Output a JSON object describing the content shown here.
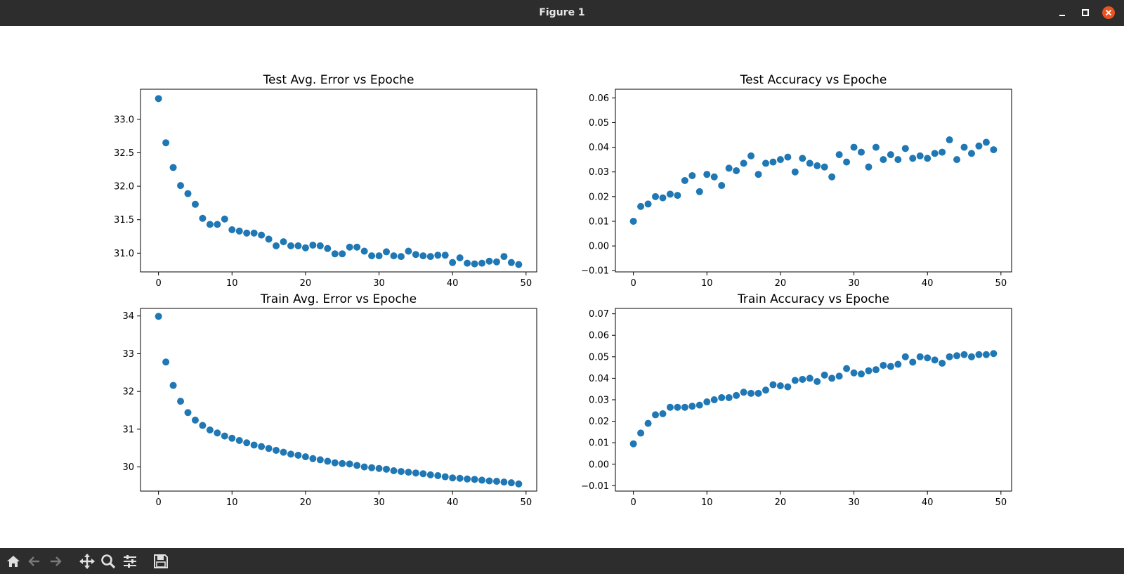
{
  "window": {
    "title": "Figure 1"
  },
  "toolbar": {
    "icons": [
      "home-icon",
      "back-arrow-icon",
      "forward-arrow-icon",
      "pan-icon",
      "zoom-icon",
      "configure-subplots-icon",
      "save-icon"
    ]
  },
  "colors": {
    "marker": "#1f77b4",
    "titlebar": "#2d2d2d",
    "close": "#e95420"
  },
  "chart_data": [
    {
      "type": "scatter",
      "title": "Test Avg. Error vs Epoche",
      "xlim": [
        -2.45,
        51.45
      ],
      "ylim": [
        30.72,
        33.45
      ],
      "xticks": [
        0,
        10,
        20,
        30,
        40,
        50
      ],
      "yticks": [
        31.0,
        31.5,
        32.0,
        32.5,
        33.0
      ],
      "ytick_labels": [
        "31.0",
        "31.5",
        "32.0",
        "32.5",
        "33.0"
      ],
      "x": [
        0,
        1,
        2,
        3,
        4,
        5,
        6,
        7,
        8,
        9,
        10,
        11,
        12,
        13,
        14,
        15,
        16,
        17,
        18,
        19,
        20,
        21,
        22,
        23,
        24,
        25,
        26,
        27,
        28,
        29,
        30,
        31,
        32,
        33,
        34,
        35,
        36,
        37,
        38,
        39,
        40,
        41,
        42,
        43,
        44,
        45,
        46,
        47,
        48,
        49
      ],
      "y": [
        33.31,
        32.65,
        32.28,
        32.01,
        31.89,
        31.73,
        31.52,
        31.43,
        31.43,
        31.51,
        31.35,
        31.33,
        31.3,
        31.3,
        31.27,
        31.21,
        31.11,
        31.17,
        31.11,
        31.11,
        31.08,
        31.12,
        31.11,
        31.07,
        30.99,
        30.99,
        31.09,
        31.09,
        31.03,
        30.96,
        30.96,
        31.02,
        30.96,
        30.95,
        31.03,
        30.98,
        30.96,
        30.95,
        30.97,
        30.97,
        30.86,
        30.93,
        30.85,
        30.84,
        30.85,
        30.88,
        30.87,
        30.95,
        30.86,
        30.83
      ]
    },
    {
      "type": "scatter",
      "title": "Test Accuracy vs Epoche",
      "xlim": [
        -2.45,
        51.45
      ],
      "ylim": [
        -0.0105,
        0.0635
      ],
      "xticks": [
        0,
        10,
        20,
        30,
        40,
        50
      ],
      "yticks": [
        -0.01,
        0.0,
        0.01,
        0.02,
        0.03,
        0.04,
        0.05,
        0.06
      ],
      "ytick_labels": [
        "−0.01",
        "0.00",
        "0.01",
        "0.02",
        "0.03",
        "0.04",
        "0.05",
        "0.06"
      ],
      "x": [
        0,
        1,
        2,
        3,
        4,
        5,
        6,
        7,
        8,
        9,
        10,
        11,
        12,
        13,
        14,
        15,
        16,
        17,
        18,
        19,
        20,
        21,
        22,
        23,
        24,
        25,
        26,
        27,
        28,
        29,
        30,
        31,
        32,
        33,
        34,
        35,
        36,
        37,
        38,
        39,
        40,
        41,
        42,
        43,
        44,
        45,
        46,
        47,
        48,
        49
      ],
      "y": [
        0.01,
        0.016,
        0.017,
        0.02,
        0.0195,
        0.021,
        0.0205,
        0.0265,
        0.0285,
        0.022,
        0.029,
        0.028,
        0.0245,
        0.0315,
        0.0305,
        0.0335,
        0.0365,
        0.029,
        0.0335,
        0.034,
        0.035,
        0.036,
        0.03,
        0.0355,
        0.0335,
        0.0325,
        0.032,
        0.028,
        0.037,
        0.034,
        0.04,
        0.038,
        0.032,
        0.04,
        0.035,
        0.037,
        0.035,
        0.0395,
        0.0355,
        0.0365,
        0.0355,
        0.0375,
        0.038,
        0.043,
        0.035,
        0.04,
        0.0375,
        0.0405,
        0.042,
        0.039
      ]
    },
    {
      "type": "scatter",
      "title": "Train Avg. Error vs Epoche",
      "xlim": [
        -2.45,
        51.45
      ],
      "ylim": [
        29.36,
        34.2
      ],
      "xticks": [
        0,
        10,
        20,
        30,
        40,
        50
      ],
      "yticks": [
        30,
        31,
        32,
        33,
        34
      ],
      "ytick_labels": [
        "30",
        "31",
        "32",
        "33",
        "34"
      ],
      "x": [
        0,
        1,
        2,
        3,
        4,
        5,
        6,
        7,
        8,
        9,
        10,
        11,
        12,
        13,
        14,
        15,
        16,
        17,
        18,
        19,
        20,
        21,
        22,
        23,
        24,
        25,
        26,
        27,
        28,
        29,
        30,
        31,
        32,
        33,
        34,
        35,
        36,
        37,
        38,
        39,
        40,
        41,
        42,
        43,
        44,
        45,
        46,
        47,
        48,
        49
      ],
      "y": [
        33.99,
        32.78,
        32.16,
        31.74,
        31.44,
        31.24,
        31.1,
        30.98,
        30.9,
        30.82,
        30.76,
        30.7,
        30.64,
        30.58,
        30.54,
        30.49,
        30.44,
        30.39,
        30.34,
        30.31,
        30.27,
        30.22,
        30.19,
        30.15,
        30.11,
        30.09,
        30.08,
        30.04,
        30.0,
        29.98,
        29.96,
        29.94,
        29.9,
        29.88,
        29.86,
        29.84,
        29.82,
        29.79,
        29.77,
        29.74,
        29.71,
        29.7,
        29.68,
        29.67,
        29.65,
        29.63,
        29.62,
        29.6,
        29.58,
        29.55
      ]
    },
    {
      "type": "scatter",
      "title": "Train Accuracy vs Epoche",
      "xlim": [
        -2.45,
        51.45
      ],
      "ylim": [
        -0.0125,
        0.0725
      ],
      "xticks": [
        0,
        10,
        20,
        30,
        40,
        50
      ],
      "yticks": [
        -0.01,
        0.0,
        0.01,
        0.02,
        0.03,
        0.04,
        0.05,
        0.06,
        0.07
      ],
      "ytick_labels": [
        "−0.01",
        "0.00",
        "0.01",
        "0.02",
        "0.03",
        "0.04",
        "0.05",
        "0.06",
        "0.07"
      ],
      "x": [
        0,
        1,
        2,
        3,
        4,
        5,
        6,
        7,
        8,
        9,
        10,
        11,
        12,
        13,
        14,
        15,
        16,
        17,
        18,
        19,
        20,
        21,
        22,
        23,
        24,
        25,
        26,
        27,
        28,
        29,
        30,
        31,
        32,
        33,
        34,
        35,
        36,
        37,
        38,
        39,
        40,
        41,
        42,
        43,
        44,
        45,
        46,
        47,
        48,
        49
      ],
      "y": [
        0.0095,
        0.0145,
        0.019,
        0.023,
        0.0235,
        0.0265,
        0.0265,
        0.0265,
        0.027,
        0.0275,
        0.029,
        0.03,
        0.031,
        0.031,
        0.032,
        0.0335,
        0.033,
        0.033,
        0.0345,
        0.037,
        0.0365,
        0.036,
        0.039,
        0.0395,
        0.04,
        0.0385,
        0.0415,
        0.04,
        0.041,
        0.0445,
        0.0425,
        0.042,
        0.0435,
        0.044,
        0.046,
        0.0455,
        0.0465,
        0.05,
        0.0475,
        0.05,
        0.0495,
        0.0485,
        0.047,
        0.05,
        0.0505,
        0.051,
        0.05,
        0.051,
        0.051,
        0.0515
      ]
    }
  ]
}
